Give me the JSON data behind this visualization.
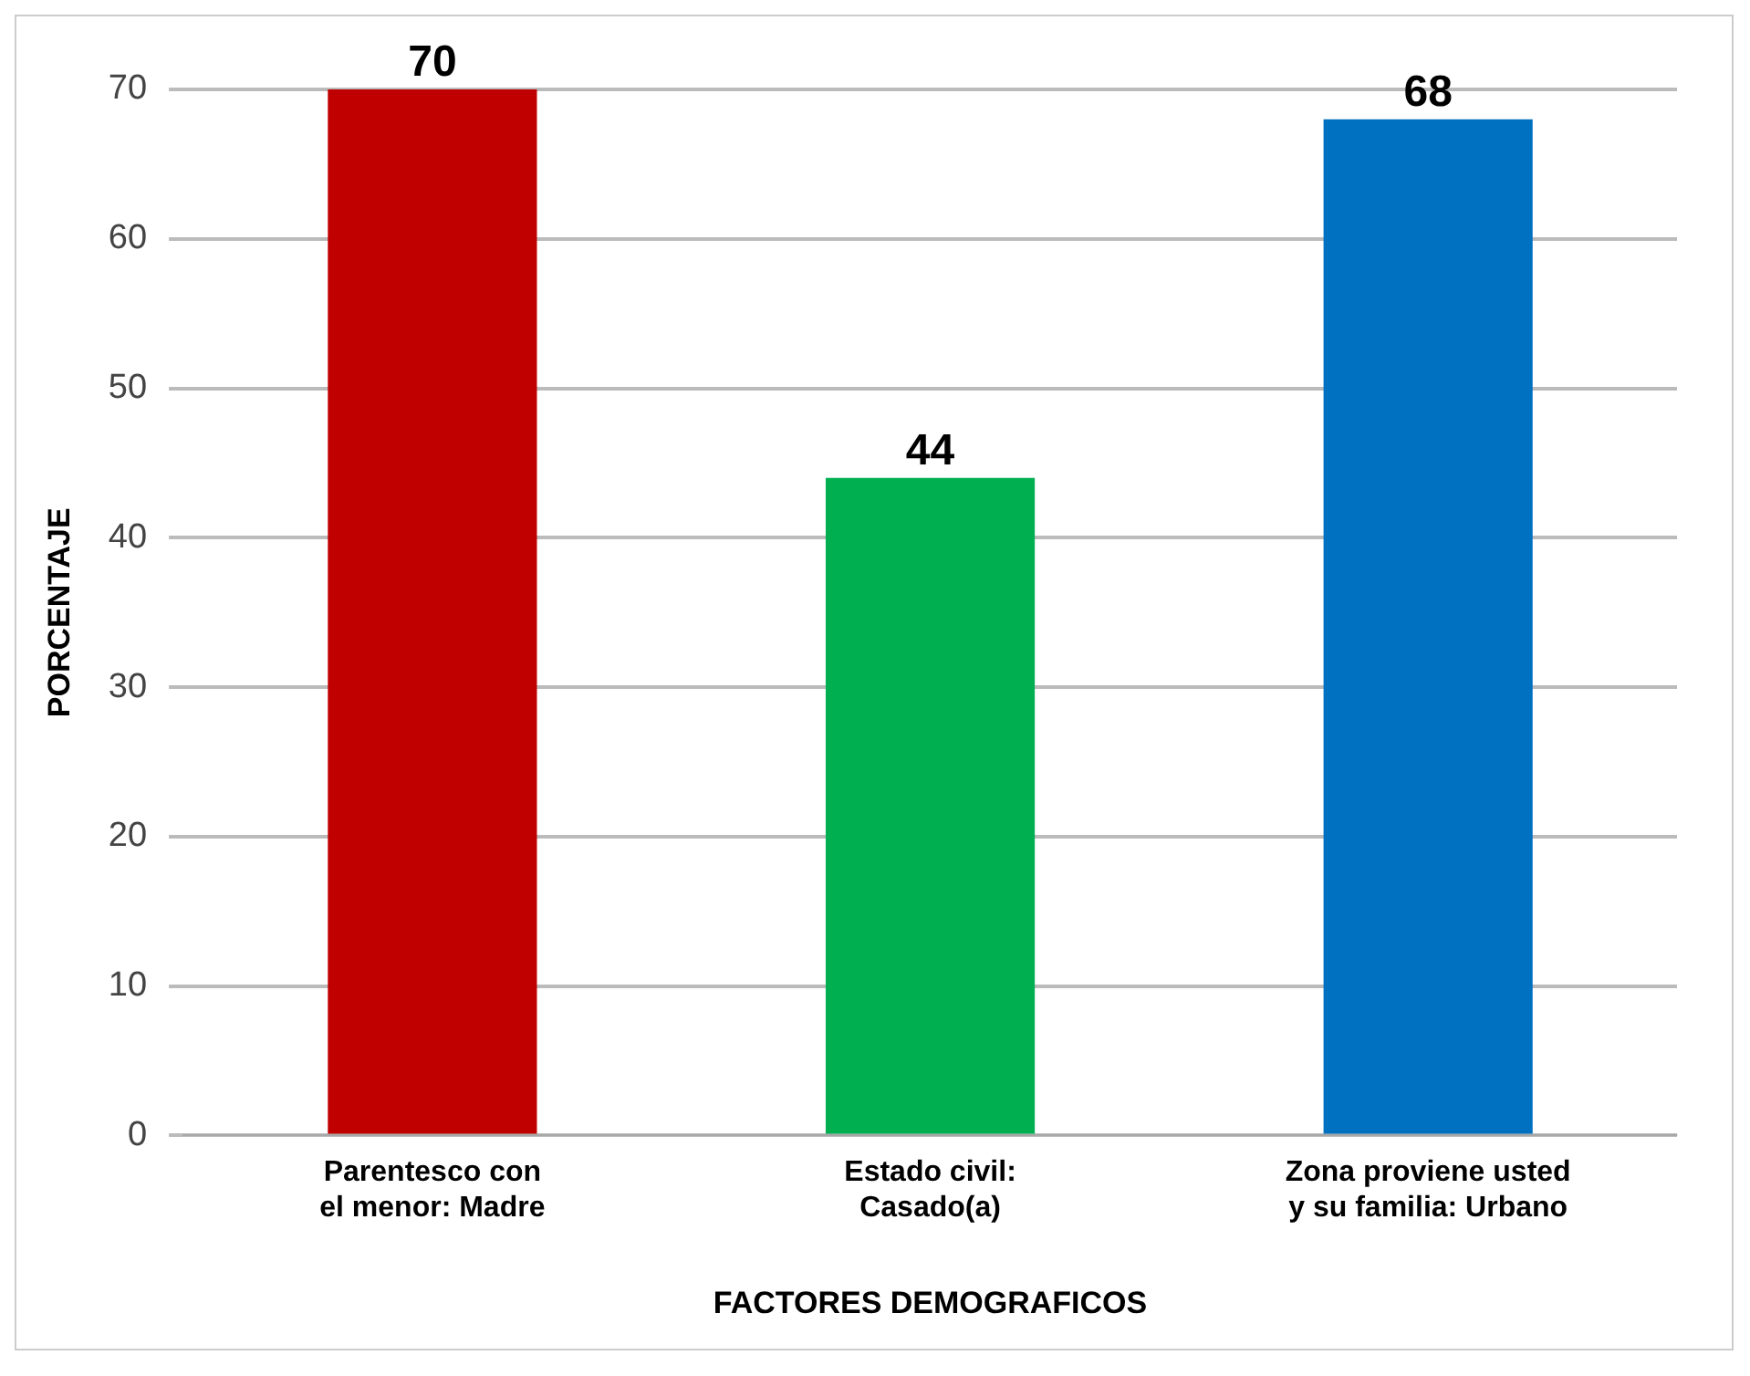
{
  "chart_data": {
    "type": "bar",
    "categories": [
      "Parentesco con el menor: Madre",
      "Estado civil: Casado(a)",
      "Zona proviene usted y su familia: Urbano"
    ],
    "values": [
      70,
      44,
      68
    ],
    "colors": [
      "#c00000",
      "#00b050",
      "#0070c0"
    ],
    "xlabel": "FACTORES DEMOGRAFICOS",
    "ylabel": "PORCENTAJE",
    "ylim": [
      0,
      70
    ],
    "yticks": [
      0,
      10,
      20,
      30,
      40,
      50,
      60,
      70
    ],
    "grid": "y",
    "data_labels": true,
    "legend": false
  }
}
